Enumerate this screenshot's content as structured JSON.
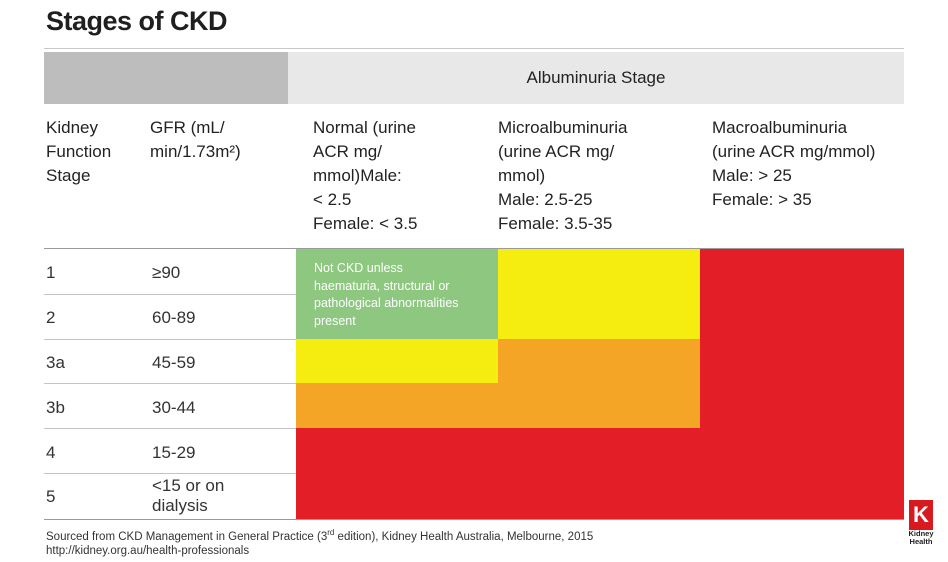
{
  "title": "Stages of CKD",
  "header": {
    "albuminuria_label": "Albuminuria Stage",
    "kidney_function_lines": [
      "Kidney",
      "Function",
      "Stage"
    ],
    "gfr_lines": [
      "GFR (mL/",
      "min/1.73m²)"
    ],
    "normal_lines": [
      "Normal (urine",
      "ACR mg/",
      "mmol)Male:",
      "< 2.5",
      "Female: < 3.5"
    ],
    "micro_lines": [
      "Microalbuminuria",
      "(urine ACR mg/",
      "mmol)",
      "Male: 2.5-25",
      "Female: 3.5-35"
    ],
    "macro_lines": [
      "Macroalbuminuria",
      "(urine ACR mg/mmol)",
      "Male: > 25",
      "Female: > 35"
    ]
  },
  "rows": [
    {
      "stage": "1",
      "gfr": "≥90"
    },
    {
      "stage": "2",
      "gfr": "60-89"
    },
    {
      "stage": "3a",
      "gfr": "45-59"
    },
    {
      "stage": "3b",
      "gfr": "30-44"
    },
    {
      "stage": "4",
      "gfr": "15-29"
    },
    {
      "stage": "5",
      "gfr_lines": [
        "<15 or on",
        "dialysis"
      ]
    }
  ],
  "note_lines": [
    "Not CKD unless",
    "haematuria, structural or",
    "pathological abnormalities",
    "present"
  ],
  "colors": {
    "green": "#8dc780",
    "yellow": "#f5ec10",
    "orange": "#f4a526",
    "red": "#e41e26"
  },
  "footer": {
    "source_pre": "Sourced from CKD Management in General Practice (3",
    "source_sup": "rd",
    "source_post": " edition), Kidney Health Australia, Melbourne, 2015",
    "url": "http://kidney.org.au/health-professionals"
  },
  "logo": {
    "mark": "K",
    "text_lines": [
      "Kidney",
      "Health"
    ]
  }
}
